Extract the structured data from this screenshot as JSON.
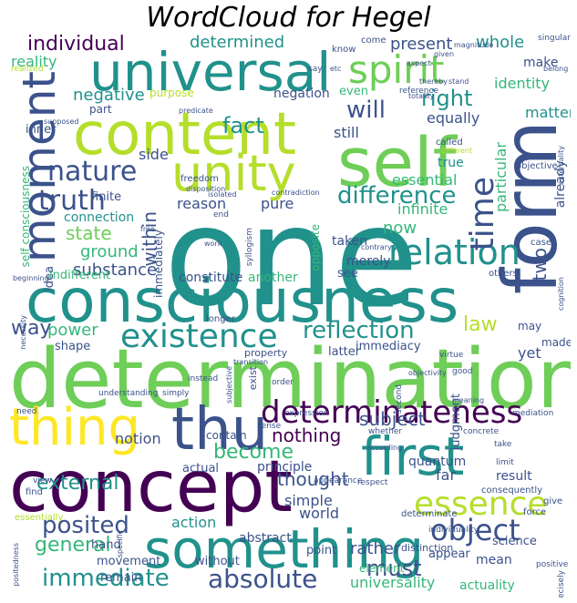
{
  "title": "WordCloud for Hegel",
  "palette": {
    "purple": "#440154",
    "indigo": "#3b528b",
    "blue": "#31688e",
    "teal": "#21918c",
    "green": "#35b779",
    "lime": "#6ece58",
    "yellowgreen": "#b5de2b",
    "yellow": "#fde725"
  },
  "words": [
    {
      "text": "one",
      "color": "teal"
    },
    {
      "text": "determination",
      "color": "lime"
    },
    {
      "text": "consciousness",
      "color": "teal"
    },
    {
      "text": "concept",
      "color": "purple"
    },
    {
      "text": "universal",
      "color": "teal"
    },
    {
      "text": "form",
      "color": "indigo"
    },
    {
      "text": "self",
      "color": "lime"
    },
    {
      "text": "content",
      "color": "yellowgreen"
    },
    {
      "text": "something",
      "color": "teal"
    },
    {
      "text": "thing",
      "color": "yellow"
    },
    {
      "text": "thu",
      "color": "indigo"
    },
    {
      "text": "first",
      "color": "teal"
    },
    {
      "text": "unity",
      "color": "yellowgreen"
    },
    {
      "text": "moment",
      "color": "indigo"
    },
    {
      "text": "spirit",
      "color": "lime"
    },
    {
      "text": "determinateness",
      "color": "purple"
    },
    {
      "text": "relation",
      "color": "teal"
    },
    {
      "text": "existence",
      "color": "teal"
    },
    {
      "text": "essence",
      "color": "yellowgreen"
    },
    {
      "text": "object",
      "color": "indigo"
    },
    {
      "text": "time",
      "color": "indigo"
    },
    {
      "text": "truth",
      "color": "indigo"
    },
    {
      "text": "nature",
      "color": "indigo"
    },
    {
      "text": "absolute",
      "color": "indigo"
    },
    {
      "text": "immediate",
      "color": "teal"
    },
    {
      "text": "posited",
      "color": "indigo"
    },
    {
      "text": "difference",
      "color": "teal"
    },
    {
      "text": "reflection",
      "color": "teal"
    },
    {
      "text": "fact",
      "color": "teal"
    },
    {
      "text": "will",
      "color": "indigo"
    },
    {
      "text": "right",
      "color": "teal"
    },
    {
      "text": "individual",
      "color": "purple"
    },
    {
      "text": "determined",
      "color": "teal"
    },
    {
      "text": "present",
      "color": "indigo"
    },
    {
      "text": "whole",
      "color": "teal"
    },
    {
      "text": "reality",
      "color": "green"
    },
    {
      "text": "external",
      "color": "teal"
    },
    {
      "text": "become",
      "color": "green"
    },
    {
      "text": "nothing",
      "color": "purple"
    },
    {
      "text": "subject",
      "color": "indigo"
    },
    {
      "text": "must",
      "color": "indigo"
    },
    {
      "text": "thought",
      "color": "indigo"
    },
    {
      "text": "general",
      "color": "green"
    },
    {
      "text": "state",
      "color": "lime"
    },
    {
      "text": "ground",
      "color": "green"
    },
    {
      "text": "substance",
      "color": "indigo"
    },
    {
      "text": "negative",
      "color": "teal"
    },
    {
      "text": "within",
      "color": "indigo"
    },
    {
      "text": "two",
      "color": "indigo"
    },
    {
      "text": "way",
      "color": "indigo"
    },
    {
      "text": "power",
      "color": "green"
    },
    {
      "text": "law",
      "color": "yellowgreen"
    },
    {
      "text": "now",
      "color": "green"
    },
    {
      "text": "still",
      "color": "indigo"
    },
    {
      "text": "reason",
      "color": "indigo"
    },
    {
      "text": "pure",
      "color": "indigo"
    },
    {
      "text": "side",
      "color": "indigo"
    },
    {
      "text": "identity",
      "color": "green"
    },
    {
      "text": "make",
      "color": "indigo"
    },
    {
      "text": "equally",
      "color": "indigo"
    },
    {
      "text": "infinite",
      "color": "green"
    },
    {
      "text": "essential",
      "color": "green"
    },
    {
      "text": "true",
      "color": "teal"
    },
    {
      "text": "particular",
      "color": "green"
    },
    {
      "text": "matter",
      "color": "teal"
    },
    {
      "text": "already",
      "color": "indigo"
    },
    {
      "text": "simple",
      "color": "indigo"
    },
    {
      "text": "far",
      "color": "indigo"
    },
    {
      "text": "world",
      "color": "indigo"
    },
    {
      "text": "rather",
      "color": "indigo"
    },
    {
      "text": "action",
      "color": "teal"
    },
    {
      "text": "notion",
      "color": "indigo"
    },
    {
      "text": "actual",
      "color": "indigo"
    },
    {
      "text": "principle",
      "color": "indigo"
    },
    {
      "text": "quantum",
      "color": "indigo"
    },
    {
      "text": "result",
      "color": "indigo"
    },
    {
      "text": "abstract",
      "color": "indigo"
    },
    {
      "text": "point",
      "color": "indigo"
    },
    {
      "text": "movement",
      "color": "indigo"
    },
    {
      "text": "remain",
      "color": "indigo"
    },
    {
      "text": "hand",
      "color": "indigo"
    },
    {
      "text": "universality",
      "color": "green"
    },
    {
      "text": "actuality",
      "color": "green"
    },
    {
      "text": "science",
      "color": "indigo"
    },
    {
      "text": "mean",
      "color": "indigo"
    },
    {
      "text": "appear",
      "color": "indigo"
    },
    {
      "text": "element",
      "color": "green"
    },
    {
      "text": "without",
      "color": "indigo"
    },
    {
      "text": "distinction",
      "color": "indigo"
    },
    {
      "text": "judgment",
      "color": "indigo"
    },
    {
      "text": "yet",
      "color": "indigo"
    },
    {
      "text": "made",
      "color": "indigo"
    },
    {
      "text": "idea",
      "color": "indigo"
    },
    {
      "text": "shape",
      "color": "indigo"
    },
    {
      "text": "latter",
      "color": "indigo"
    },
    {
      "text": "immediacy",
      "color": "indigo"
    },
    {
      "text": "constitute",
      "color": "indigo"
    },
    {
      "text": "another",
      "color": "green"
    },
    {
      "text": "see",
      "color": "indigo"
    },
    {
      "text": "taken",
      "color": "indigo"
    },
    {
      "text": "merely",
      "color": "indigo"
    },
    {
      "text": "indifferent",
      "color": "green"
    },
    {
      "text": "connection",
      "color": "teal"
    },
    {
      "text": "finite",
      "color": "indigo"
    },
    {
      "text": "inner",
      "color": "indigo"
    },
    {
      "text": "negation",
      "color": "indigo"
    },
    {
      "text": "even",
      "color": "green"
    },
    {
      "text": "part",
      "color": "indigo"
    },
    {
      "text": "purpose",
      "color": "yellowgreen"
    },
    {
      "text": "immediately",
      "color": "indigo"
    },
    {
      "text": "self consciousness",
      "color": "green"
    },
    {
      "text": "contain",
      "color": "indigo"
    },
    {
      "text": "exist",
      "color": "indigo"
    },
    {
      "text": "property",
      "color": "indigo"
    },
    {
      "text": "opposite",
      "color": "green"
    },
    {
      "text": "may",
      "color": "indigo"
    },
    {
      "text": "know",
      "color": "indigo"
    },
    {
      "text": "come",
      "color": "indigo"
    },
    {
      "text": "called",
      "color": "indigo"
    },
    {
      "text": "objective",
      "color": "indigo"
    },
    {
      "text": "case",
      "color": "indigo"
    },
    {
      "text": "others",
      "color": "indigo"
    },
    {
      "text": "reference",
      "color": "indigo"
    },
    {
      "text": "freedom",
      "color": "indigo"
    },
    {
      "text": "longer",
      "color": "indigo"
    },
    {
      "text": "order",
      "color": "indigo"
    },
    {
      "text": "appearance",
      "color": "indigo"
    },
    {
      "text": "respect",
      "color": "indigo"
    },
    {
      "text": "determinate",
      "color": "indigo"
    },
    {
      "text": "consequently",
      "color": "indigo"
    },
    {
      "text": "limit",
      "color": "indigo"
    },
    {
      "text": "give",
      "color": "indigo"
    },
    {
      "text": "force",
      "color": "indigo"
    },
    {
      "text": "individuality",
      "color": "indigo"
    },
    {
      "text": "positive",
      "color": "indigo"
    },
    {
      "text": "precisely",
      "color": "indigo"
    },
    {
      "text": "concrete",
      "color": "indigo"
    },
    {
      "text": "mediation",
      "color": "indigo"
    },
    {
      "text": "good",
      "color": "indigo"
    },
    {
      "text": "second",
      "color": "indigo"
    },
    {
      "text": "expression",
      "color": "indigo"
    },
    {
      "text": "whether",
      "color": "indigo"
    },
    {
      "text": "sense",
      "color": "indigo"
    },
    {
      "text": "simply",
      "color": "indigo"
    },
    {
      "text": "instead",
      "color": "indigo"
    },
    {
      "text": "understanding",
      "color": "indigo"
    },
    {
      "text": "need",
      "color": "indigo"
    },
    {
      "text": "essentially",
      "color": "yellowgreen"
    },
    {
      "text": "find",
      "color": "indigo"
    },
    {
      "text": "view",
      "color": "indigo"
    },
    {
      "text": "transition",
      "color": "indigo"
    },
    {
      "text": "subjective",
      "color": "indigo"
    },
    {
      "text": "objectivity",
      "color": "indigo"
    },
    {
      "text": "virtue",
      "color": "indigo"
    },
    {
      "text": "meaning",
      "color": "indigo"
    },
    {
      "text": "according",
      "color": "indigo"
    },
    {
      "text": "take",
      "color": "indigo"
    },
    {
      "text": "singular",
      "color": "indigo"
    },
    {
      "text": "belong",
      "color": "indigo"
    },
    {
      "text": "magnitude",
      "color": "indigo"
    },
    {
      "text": "given",
      "color": "indigo"
    },
    {
      "text": "thereby",
      "color": "indigo"
    },
    {
      "text": "stand",
      "color": "indigo"
    },
    {
      "text": "say",
      "color": "indigo"
    },
    {
      "text": "etc",
      "color": "indigo"
    },
    {
      "text": "aspect",
      "color": "indigo"
    },
    {
      "text": "totality",
      "color": "indigo"
    },
    {
      "text": "externality",
      "color": "indigo"
    },
    {
      "text": "different",
      "color": "yellowgreen"
    },
    {
      "text": "predicate",
      "color": "indigo"
    },
    {
      "text": "supposed",
      "color": "indigo"
    },
    {
      "text": "realized",
      "color": "yellowgreen"
    },
    {
      "text": "disposition",
      "color": "indigo"
    },
    {
      "text": "isolated",
      "color": "indigo"
    },
    {
      "text": "contradiction",
      "color": "indigo"
    },
    {
      "text": "end",
      "color": "indigo"
    },
    {
      "text": "work",
      "color": "indigo"
    },
    {
      "text": "syllogism",
      "color": "indigo"
    },
    {
      "text": "contrary",
      "color": "indigo"
    },
    {
      "text": "beginning",
      "color": "indigo"
    },
    {
      "text": "necessity",
      "color": "indigo"
    },
    {
      "text": "cognition",
      "color": "indigo"
    },
    {
      "text": "positedness",
      "color": "indigo"
    },
    {
      "text": "specific",
      "color": "indigo"
    },
    {
      "text": "free",
      "color": "indigo"
    }
  ]
}
